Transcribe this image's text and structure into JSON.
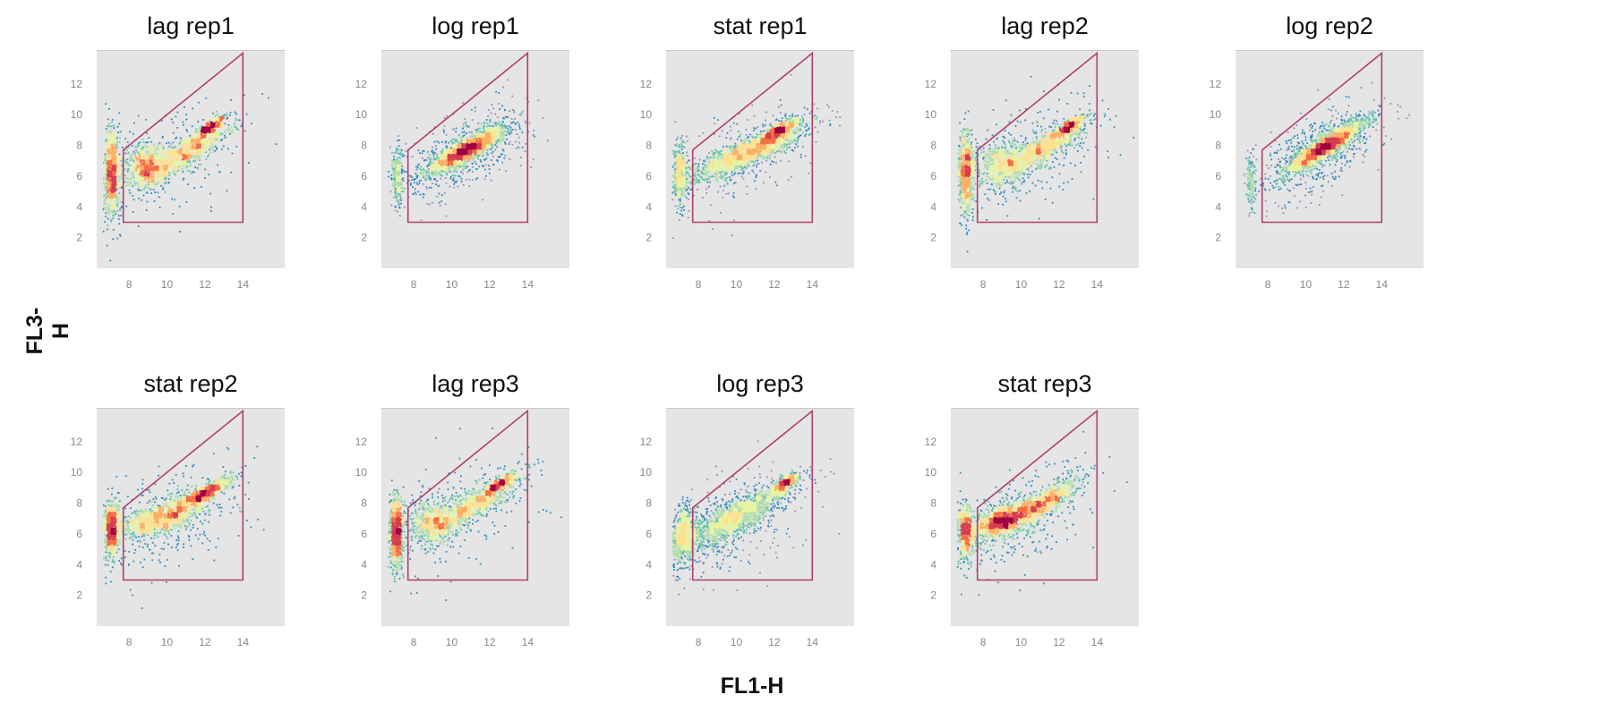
{
  "chart_data": {
    "type": "scatter",
    "xlabel": "FL1-H",
    "ylabel": "FL3-H",
    "xlim": [
      6.3,
      16.2
    ],
    "ylim": [
      0,
      14.2
    ],
    "xticks": [
      8,
      10,
      12,
      14
    ],
    "yticks": [
      2,
      4,
      6,
      8,
      10,
      12
    ],
    "gate": {
      "color": "#b0406a",
      "vertices": [
        [
          7.7,
          3
        ],
        [
          14,
          3
        ],
        [
          14,
          14
        ],
        [
          7.7,
          7.7
        ]
      ]
    },
    "colormap": [
      "#5e4fa2",
      "#3288bd",
      "#66c2a5",
      "#abdda4",
      "#e6f598",
      "#fee08b",
      "#fdae61",
      "#f46d43",
      "#d53e4f",
      "#9e0142"
    ],
    "panels": [
      {
        "title": "lag rep1",
        "clusters": [
          {
            "x": 7.05,
            "y": 6.2,
            "sx": 0.22,
            "sy": 1.4,
            "weight": 0.28,
            "rho": 0
          },
          {
            "x": 8.9,
            "y": 6.7,
            "sx": 0.55,
            "sy": 0.75,
            "weight": 0.25,
            "rho": 0
          },
          {
            "x": 11.0,
            "y": 7.6,
            "sx": 1.1,
            "sy": 0.9,
            "weight": 0.27,
            "rho": 0.85
          },
          {
            "x": 12.2,
            "y": 9.2,
            "sx": 0.4,
            "sy": 0.35,
            "weight": 0.12,
            "rho": 0.8
          },
          {
            "x": 10.0,
            "y": 7.0,
            "sx": 2.2,
            "sy": 2.0,
            "weight": 0.08,
            "rho": 0.5
          }
        ]
      },
      {
        "title": "log rep1",
        "clusters": [
          {
            "x": 7.1,
            "y": 6.0,
            "sx": 0.15,
            "sy": 0.9,
            "weight": 0.08,
            "rho": 0
          },
          {
            "x": 10.8,
            "y": 7.8,
            "sx": 1.0,
            "sy": 0.75,
            "weight": 0.72,
            "rho": 0.88
          },
          {
            "x": 10.5,
            "y": 7.5,
            "sx": 1.8,
            "sy": 1.6,
            "weight": 0.2,
            "rho": 0.6
          }
        ]
      },
      {
        "title": "stat rep1",
        "clusters": [
          {
            "x": 7.0,
            "y": 6.2,
            "sx": 0.2,
            "sy": 1.0,
            "weight": 0.15,
            "rho": 0
          },
          {
            "x": 10.5,
            "y": 7.6,
            "sx": 1.5,
            "sy": 0.9,
            "weight": 0.55,
            "rho": 0.85
          },
          {
            "x": 12.2,
            "y": 9.0,
            "sx": 0.5,
            "sy": 0.4,
            "weight": 0.2,
            "rho": 0.8
          },
          {
            "x": 10.0,
            "y": 7.0,
            "sx": 2.0,
            "sy": 1.8,
            "weight": 0.1,
            "rho": 0.5
          }
        ]
      },
      {
        "title": "lag rep2",
        "clusters": [
          {
            "x": 7.05,
            "y": 6.3,
            "sx": 0.2,
            "sy": 1.3,
            "weight": 0.3,
            "rho": 0
          },
          {
            "x": 9.0,
            "y": 6.8,
            "sx": 0.6,
            "sy": 0.7,
            "weight": 0.2,
            "rho": 0
          },
          {
            "x": 11.2,
            "y": 7.9,
            "sx": 1.1,
            "sy": 0.9,
            "weight": 0.3,
            "rho": 0.85
          },
          {
            "x": 12.5,
            "y": 9.3,
            "sx": 0.4,
            "sy": 0.35,
            "weight": 0.1,
            "rho": 0.8
          },
          {
            "x": 10.0,
            "y": 7.2,
            "sx": 2.2,
            "sy": 2.0,
            "weight": 0.1,
            "rho": 0.5
          }
        ]
      },
      {
        "title": "log rep2",
        "clusters": [
          {
            "x": 7.1,
            "y": 5.8,
            "sx": 0.12,
            "sy": 0.9,
            "weight": 0.06,
            "rho": 0
          },
          {
            "x": 11.0,
            "y": 8.0,
            "sx": 1.0,
            "sy": 0.8,
            "weight": 0.74,
            "rho": 0.9
          },
          {
            "x": 10.6,
            "y": 7.6,
            "sx": 1.6,
            "sy": 1.5,
            "weight": 0.2,
            "rho": 0.6
          }
        ]
      },
      {
        "title": "stat rep2",
        "clusters": [
          {
            "x": 7.05,
            "y": 6.4,
            "sx": 0.2,
            "sy": 0.9,
            "weight": 0.25,
            "rho": 0
          },
          {
            "x": 9.5,
            "y": 7.0,
            "sx": 1.2,
            "sy": 0.6,
            "weight": 0.35,
            "rho": 0.6
          },
          {
            "x": 11.8,
            "y": 8.6,
            "sx": 0.7,
            "sy": 0.5,
            "weight": 0.25,
            "rho": 0.85
          },
          {
            "x": 10.0,
            "y": 7.0,
            "sx": 2.0,
            "sy": 1.8,
            "weight": 0.15,
            "rho": 0.5
          }
        ]
      },
      {
        "title": "lag rep3",
        "clusters": [
          {
            "x": 7.05,
            "y": 6.2,
            "sx": 0.2,
            "sy": 1.2,
            "weight": 0.3,
            "rho": 0
          },
          {
            "x": 9.0,
            "y": 6.8,
            "sx": 0.6,
            "sy": 0.7,
            "weight": 0.2,
            "rho": 0
          },
          {
            "x": 11.2,
            "y": 8.0,
            "sx": 1.2,
            "sy": 0.95,
            "weight": 0.3,
            "rho": 0.85
          },
          {
            "x": 12.5,
            "y": 9.3,
            "sx": 0.4,
            "sy": 0.35,
            "weight": 0.1,
            "rho": 0.8
          },
          {
            "x": 10.0,
            "y": 7.2,
            "sx": 2.3,
            "sy": 2.1,
            "weight": 0.1,
            "rho": 0.5
          }
        ]
      },
      {
        "title": "log rep3",
        "clusters": [
          {
            "x": 7.2,
            "y": 6.0,
            "sx": 0.35,
            "sy": 1.0,
            "weight": 0.2,
            "rho": 0.2
          },
          {
            "x": 10.0,
            "y": 7.2,
            "sx": 1.5,
            "sy": 1.1,
            "weight": 0.5,
            "rho": 0.85
          },
          {
            "x": 12.5,
            "y": 9.3,
            "sx": 0.35,
            "sy": 0.3,
            "weight": 0.15,
            "rho": 0.8
          },
          {
            "x": 9.5,
            "y": 6.5,
            "sx": 2.0,
            "sy": 1.8,
            "weight": 0.15,
            "rho": 0.5
          }
        ]
      },
      {
        "title": "stat rep3",
        "clusters": [
          {
            "x": 7.05,
            "y": 6.2,
            "sx": 0.2,
            "sy": 0.9,
            "weight": 0.2,
            "rho": 0
          },
          {
            "x": 9.0,
            "y": 6.9,
            "sx": 0.7,
            "sy": 0.55,
            "weight": 0.35,
            "rho": 0.5
          },
          {
            "x": 11.0,
            "y": 8.0,
            "sx": 1.0,
            "sy": 0.8,
            "weight": 0.3,
            "rho": 0.85
          },
          {
            "x": 9.8,
            "y": 7.0,
            "sx": 2.0,
            "sy": 1.8,
            "weight": 0.15,
            "rho": 0.5
          }
        ]
      }
    ]
  }
}
